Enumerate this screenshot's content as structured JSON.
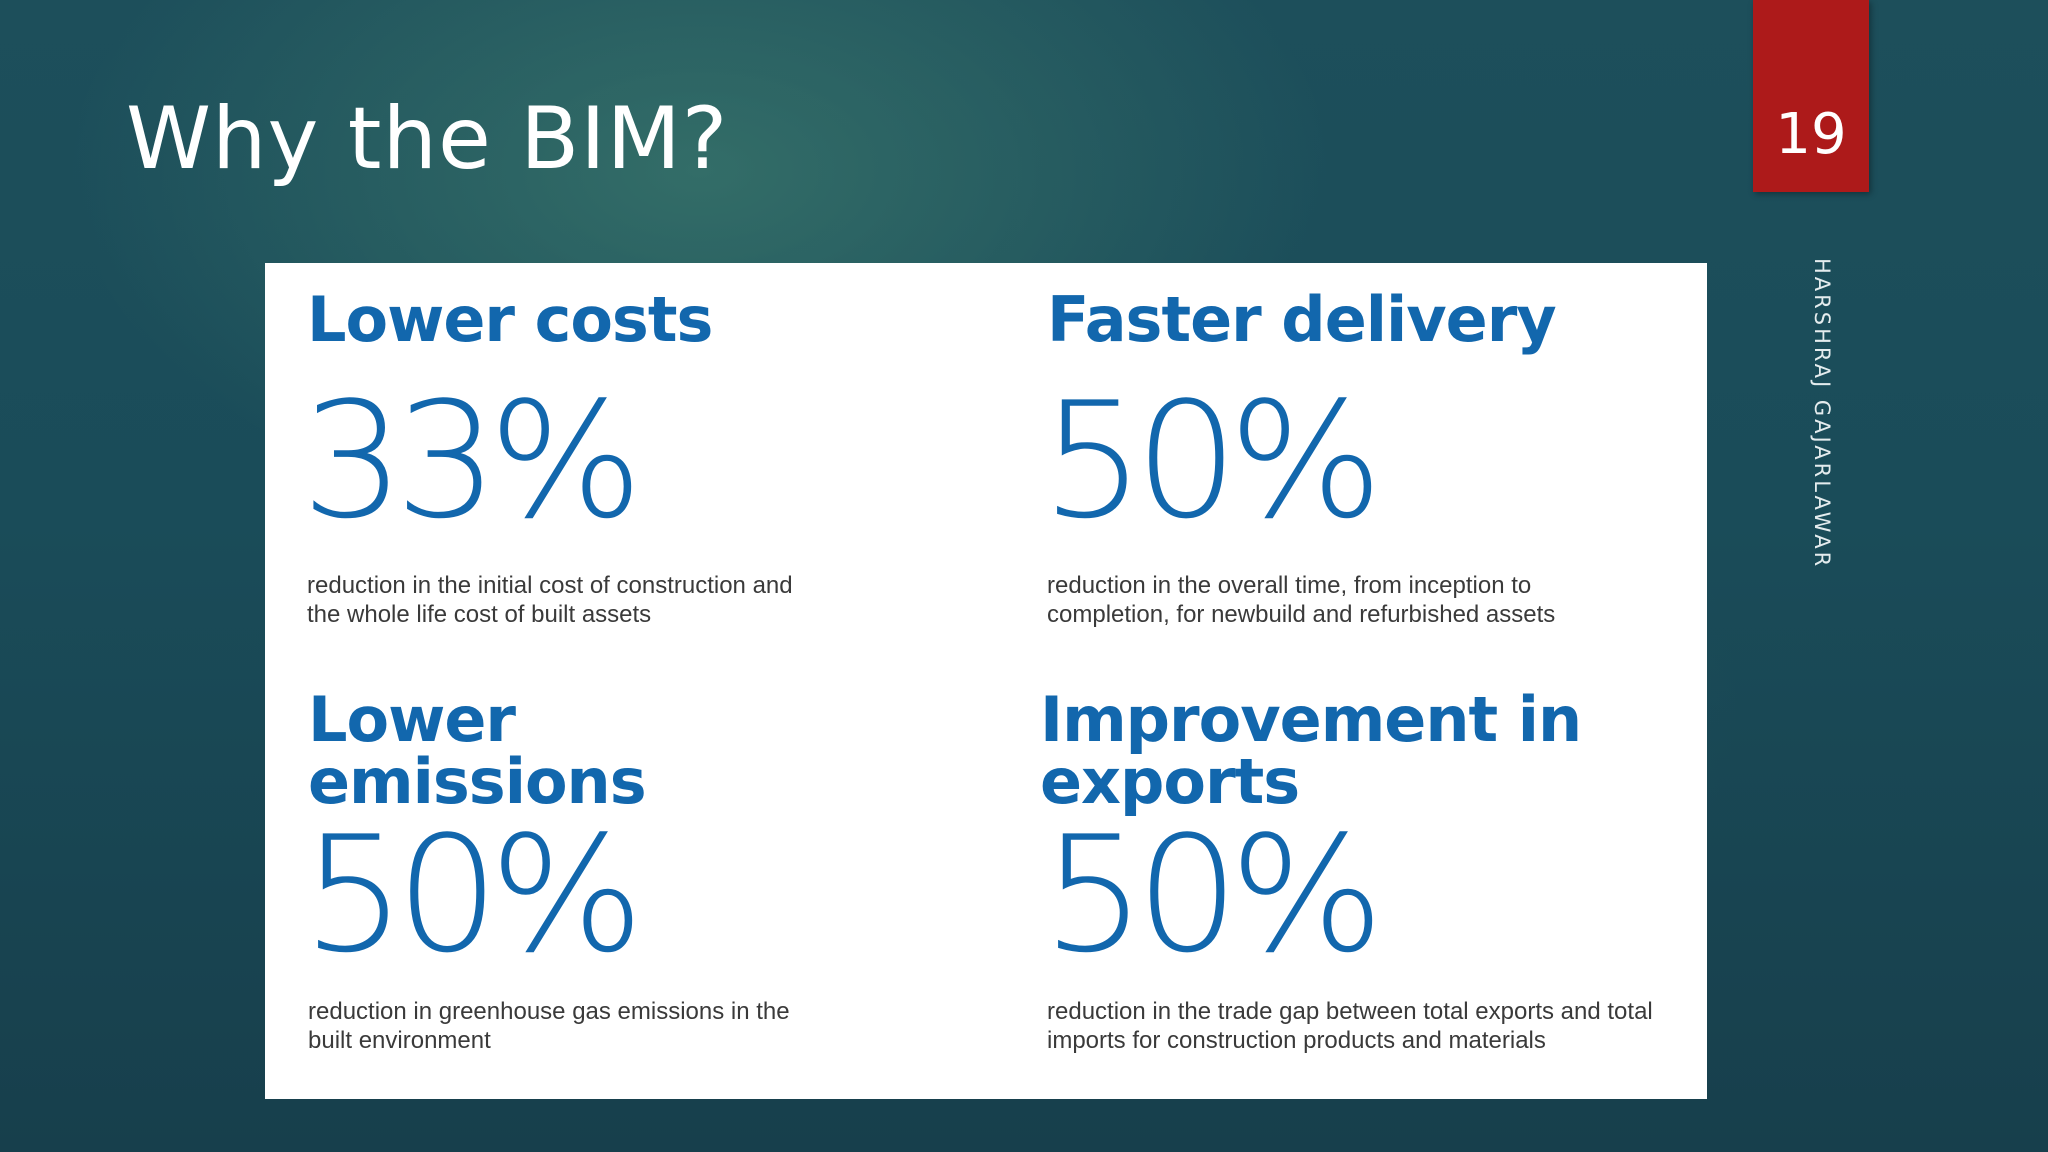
{
  "slide": {
    "title": "Why the BIM?",
    "page_number": "19",
    "author": "HARSHRAJ GAJARLAWAR",
    "accent_color": "#ad1a1a",
    "heading_color": "#1267ad"
  },
  "stats": [
    {
      "heading": "Lower costs",
      "value": "33%",
      "description": "reduction in the initial cost of construction and the whole life cost of built assets"
    },
    {
      "heading": "Faster delivery",
      "value": "50%",
      "description": "reduction in the overall time, from inception to completion, for newbuild and refurbished assets"
    },
    {
      "heading": "Lower emissions",
      "value": "50%",
      "description": "reduction in greenhouse gas emissions in the built environment"
    },
    {
      "heading": "Improvement in exports",
      "value": "50%",
      "description": "reduction in the trade gap between total exports and total imports for construction products and materials"
    }
  ]
}
